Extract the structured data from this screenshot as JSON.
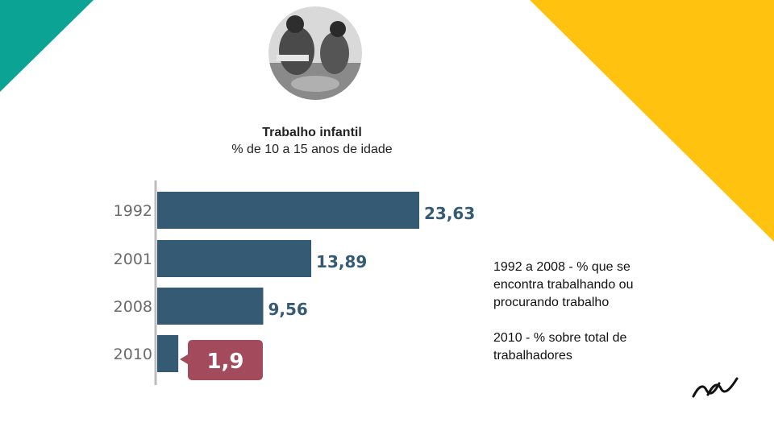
{
  "slide": {
    "accent_colors": {
      "teal": "#0aa394",
      "yellow": "#ffc20e"
    },
    "photo": {
      "icon": "child-labor-photo",
      "description_visible": false
    },
    "notes": [
      "1992 a 2008 - % que se encontra trabalhando ou procurando trabalho",
      "2010 - % sobre total de trabalhadores"
    ],
    "logo": {
      "icon": "wave-logo-icon"
    }
  },
  "chart_data": {
    "type": "bar",
    "orientation": "horizontal",
    "title": "Trabalho infantil",
    "subtitle": "% de 10 a 15 anos de idade",
    "categories": [
      "1992",
      "2001",
      "2008",
      "2010"
    ],
    "values": [
      23.63,
      13.89,
      9.56,
      1.9
    ],
    "value_labels": [
      "23,63",
      "13,89",
      "9,56",
      "1,9"
    ],
    "highlight": {
      "category": "2010",
      "color": "#a34a5c"
    },
    "bar_color": "#355b74",
    "xlim": [
      0,
      23.63
    ],
    "grid": false,
    "legend": "none"
  }
}
